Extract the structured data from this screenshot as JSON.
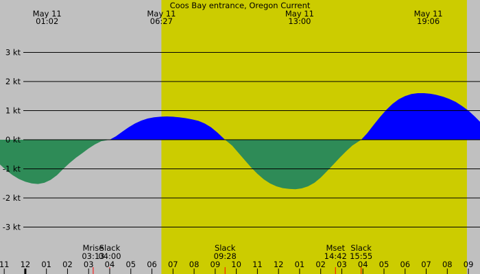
{
  "chart_data": {
    "type": "area",
    "title": "Coos Bay entrance, Oregon Current",
    "ylabel": "",
    "xlabel": "",
    "y_unit": "kt",
    "ylim": [
      -4.8,
      4.8
    ],
    "y_ticks": [
      {
        "value": 3,
        "label": "3 kt"
      },
      {
        "value": 2,
        "label": "2 kt"
      },
      {
        "value": 1,
        "label": "1 kt"
      },
      {
        "value": 0,
        "label": "0 kt"
      },
      {
        "value": -1,
        "label": "-1 kt"
      },
      {
        "value": -2,
        "label": "-2 kt"
      },
      {
        "value": -3,
        "label": "-3 kt"
      }
    ],
    "xlim_hours": [
      -1.2,
      21.55
    ],
    "hour_ticks": [
      {
        "hour": -1,
        "label": "11"
      },
      {
        "hour": 0,
        "label": "12"
      },
      {
        "hour": 1,
        "label": "01"
      },
      {
        "hour": 2,
        "label": "02"
      },
      {
        "hour": 3,
        "label": "03"
      },
      {
        "hour": 4,
        "label": "04"
      },
      {
        "hour": 5,
        "label": "05"
      },
      {
        "hour": 6,
        "label": "06"
      },
      {
        "hour": 7,
        "label": "07"
      },
      {
        "hour": 8,
        "label": "08"
      },
      {
        "hour": 9,
        "label": "09"
      },
      {
        "hour": 10,
        "label": "10"
      },
      {
        "hour": 11,
        "label": "11"
      },
      {
        "hour": 12,
        "label": "12"
      },
      {
        "hour": 13,
        "label": "01"
      },
      {
        "hour": 14,
        "label": "02"
      },
      {
        "hour": 15,
        "label": "03"
      },
      {
        "hour": 16,
        "label": "04"
      },
      {
        "hour": 17,
        "label": "05"
      },
      {
        "hour": 18,
        "label": "06"
      },
      {
        "hour": 19,
        "label": "07"
      },
      {
        "hour": 20,
        "label": "08"
      },
      {
        "hour": 21,
        "label": "09"
      }
    ],
    "midnight_hour": 0,
    "daylight": {
      "start_hour": 6.45,
      "end_hour": 20.93
    },
    "top_labels": [
      {
        "hour": 1.033,
        "date": "May 11",
        "time": "01:02"
      },
      {
        "hour": 6.45,
        "date": "May 11",
        "time": "06:27"
      },
      {
        "hour": 13.0,
        "date": "May 11",
        "time": "13:00"
      },
      {
        "hour": 19.1,
        "date": "May 11",
        "time": "19:06"
      }
    ],
    "events": [
      {
        "hour": 3.217,
        "name": "Mrise",
        "time": "03:13",
        "marker": false
      },
      {
        "hour": 4.0,
        "name": "Slack",
        "time": "04:00",
        "marker": true
      },
      {
        "hour": 9.467,
        "name": "Slack",
        "time": "09:28",
        "marker": true
      },
      {
        "hour": 14.7,
        "name": "Mset",
        "time": "14:42",
        "marker": false
      },
      {
        "hour": 15.917,
        "name": "Slack",
        "time": "15:55",
        "marker": true
      }
    ],
    "series": [
      {
        "flood_color": "#0000ff",
        "ebb_color": "#2e8b57",
        "points": [
          [
            -1.2,
            -0.85
          ],
          [
            -0.9,
            -1.05
          ],
          [
            -0.6,
            -1.22
          ],
          [
            -0.3,
            -1.35
          ],
          [
            0.0,
            -1.44
          ],
          [
            0.3,
            -1.5
          ],
          [
            0.6,
            -1.52
          ],
          [
            0.9,
            -1.48
          ],
          [
            1.2,
            -1.38
          ],
          [
            1.5,
            -1.22
          ],
          [
            1.8,
            -1.0
          ],
          [
            2.1,
            -0.8
          ],
          [
            2.4,
            -0.62
          ],
          [
            2.7,
            -0.46
          ],
          [
            3.0,
            -0.3
          ],
          [
            3.3,
            -0.16
          ],
          [
            3.6,
            -0.05
          ],
          [
            4.0,
            0.0
          ],
          [
            4.3,
            0.12
          ],
          [
            4.6,
            0.28
          ],
          [
            4.9,
            0.43
          ],
          [
            5.2,
            0.56
          ],
          [
            5.5,
            0.66
          ],
          [
            5.8,
            0.73
          ],
          [
            6.1,
            0.77
          ],
          [
            6.4,
            0.79
          ],
          [
            6.7,
            0.8
          ],
          [
            7.0,
            0.79
          ],
          [
            7.3,
            0.77
          ],
          [
            7.6,
            0.74
          ],
          [
            7.9,
            0.7
          ],
          [
            8.2,
            0.65
          ],
          [
            8.5,
            0.56
          ],
          [
            8.8,
            0.43
          ],
          [
            9.1,
            0.25
          ],
          [
            9.467,
            0.0
          ],
          [
            9.8,
            -0.2
          ],
          [
            10.1,
            -0.45
          ],
          [
            10.4,
            -0.7
          ],
          [
            10.7,
            -0.95
          ],
          [
            11.0,
            -1.17
          ],
          [
            11.3,
            -1.36
          ],
          [
            11.6,
            -1.5
          ],
          [
            11.9,
            -1.6
          ],
          [
            12.2,
            -1.66
          ],
          [
            12.5,
            -1.69
          ],
          [
            12.8,
            -1.7
          ],
          [
            13.1,
            -1.67
          ],
          [
            13.4,
            -1.6
          ],
          [
            13.7,
            -1.48
          ],
          [
            14.0,
            -1.3
          ],
          [
            14.3,
            -1.08
          ],
          [
            14.6,
            -0.85
          ],
          [
            14.9,
            -0.62
          ],
          [
            15.2,
            -0.4
          ],
          [
            15.5,
            -0.2
          ],
          [
            15.917,
            0.0
          ],
          [
            16.2,
            0.22
          ],
          [
            16.5,
            0.5
          ],
          [
            16.8,
            0.77
          ],
          [
            17.1,
            1.02
          ],
          [
            17.4,
            1.23
          ],
          [
            17.7,
            1.39
          ],
          [
            18.0,
            1.5
          ],
          [
            18.3,
            1.57
          ],
          [
            18.6,
            1.6
          ],
          [
            18.9,
            1.6
          ],
          [
            19.2,
            1.58
          ],
          [
            19.5,
            1.54
          ],
          [
            19.8,
            1.48
          ],
          [
            20.1,
            1.4
          ],
          [
            20.4,
            1.3
          ],
          [
            20.7,
            1.16
          ],
          [
            21.0,
            1.0
          ],
          [
            21.3,
            0.8
          ],
          [
            21.55,
            0.62
          ]
        ]
      }
    ],
    "gridline_color": "#000000",
    "daylight_color": "#cccc00",
    "night_color": "#c0c0c0"
  }
}
